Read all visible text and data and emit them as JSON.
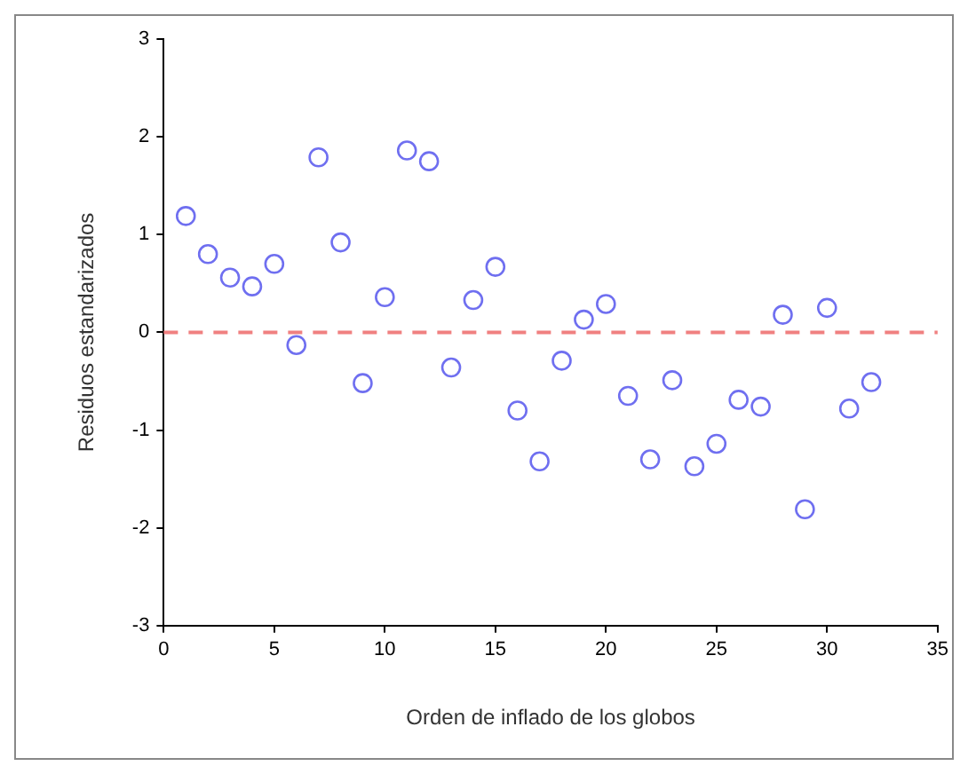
{
  "chart_data": {
    "type": "scatter",
    "xlabel": "Orden de inflado de los globos",
    "ylabel": "Residuos estandarizados",
    "x": [
      1,
      2,
      3,
      4,
      5,
      6,
      7,
      8,
      9,
      10,
      11,
      12,
      13,
      14,
      15,
      16,
      17,
      18,
      19,
      20,
      21,
      22,
      23,
      24,
      25,
      26,
      27,
      28,
      29,
      30,
      31,
      32
    ],
    "series": [
      {
        "color": "#6f6ff0",
        "values": [
          1.19,
          0.8,
          0.56,
          0.47,
          0.7,
          -0.13,
          1.79,
          0.92,
          -0.52,
          0.36,
          1.86,
          1.75,
          -0.36,
          0.33,
          0.67,
          -0.8,
          -1.32,
          -0.29,
          0.13,
          0.29,
          -0.65,
          -1.3,
          -0.49,
          -1.37,
          -1.14,
          -0.69,
          -0.76,
          0.18,
          -1.81,
          0.25,
          -0.78,
          -0.51
        ]
      }
    ],
    "xlim": [
      0,
      35
    ],
    "xticks": [
      0,
      5,
      10,
      15,
      20,
      25,
      30,
      35
    ],
    "ylim": [
      -3,
      3
    ],
    "yticks": [
      -3,
      -2,
      -1,
      0,
      1,
      2,
      3
    ],
    "ref_lines": [
      {
        "axis": "y",
        "value": 0,
        "color": "#f08080",
        "line_style": "dashed"
      }
    ],
    "marker": "circle",
    "grid": false,
    "legend": false
  }
}
